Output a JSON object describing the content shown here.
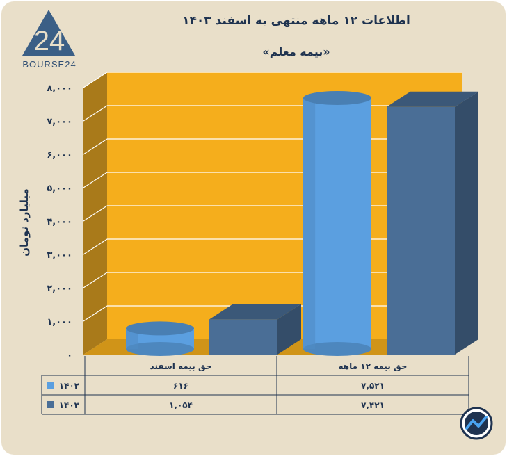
{
  "brand": {
    "logo_number": "24",
    "logo_text": "BOURSE24"
  },
  "chart_data": {
    "type": "bar",
    "title": "اطلاعات ۱۲ ماهه منتهی به اسفند ۱۴۰۳",
    "subtitle": "«بیمه معلم»",
    "ylabel": "میلیارد تومان",
    "ylim": [
      0,
      8000
    ],
    "yticks": [
      "۰",
      "۱,۰۰۰",
      "۲,۰۰۰",
      "۳,۰۰۰",
      "۴,۰۰۰",
      "۵,۰۰۰",
      "۶,۰۰۰",
      "۷,۰۰۰",
      "۸,۰۰۰"
    ],
    "categories": [
      "حق بیمه اسفند",
      "حق بیمه ۱۲ ماهه"
    ],
    "series": [
      {
        "name": "۱۴۰۲",
        "values": [
          616,
          7521
        ],
        "value_labels": [
          "۶۱۶",
          "۷,۵۲۱"
        ],
        "color": "#5b9fe0",
        "shape": "cylinder"
      },
      {
        "name": "۱۴۰۳",
        "values": [
          1054,
          7421
        ],
        "value_labels": [
          "۱,۰۵۴",
          "۷,۴۲۱"
        ],
        "color": "#4a6e96",
        "shape": "box"
      }
    ],
    "grid": true,
    "legend": "table-bottom",
    "colors": {
      "background": "#e9dfc9",
      "plot": "#f5ae1c",
      "plot_side": "#a97a1a",
      "text": "#1f3350"
    }
  }
}
